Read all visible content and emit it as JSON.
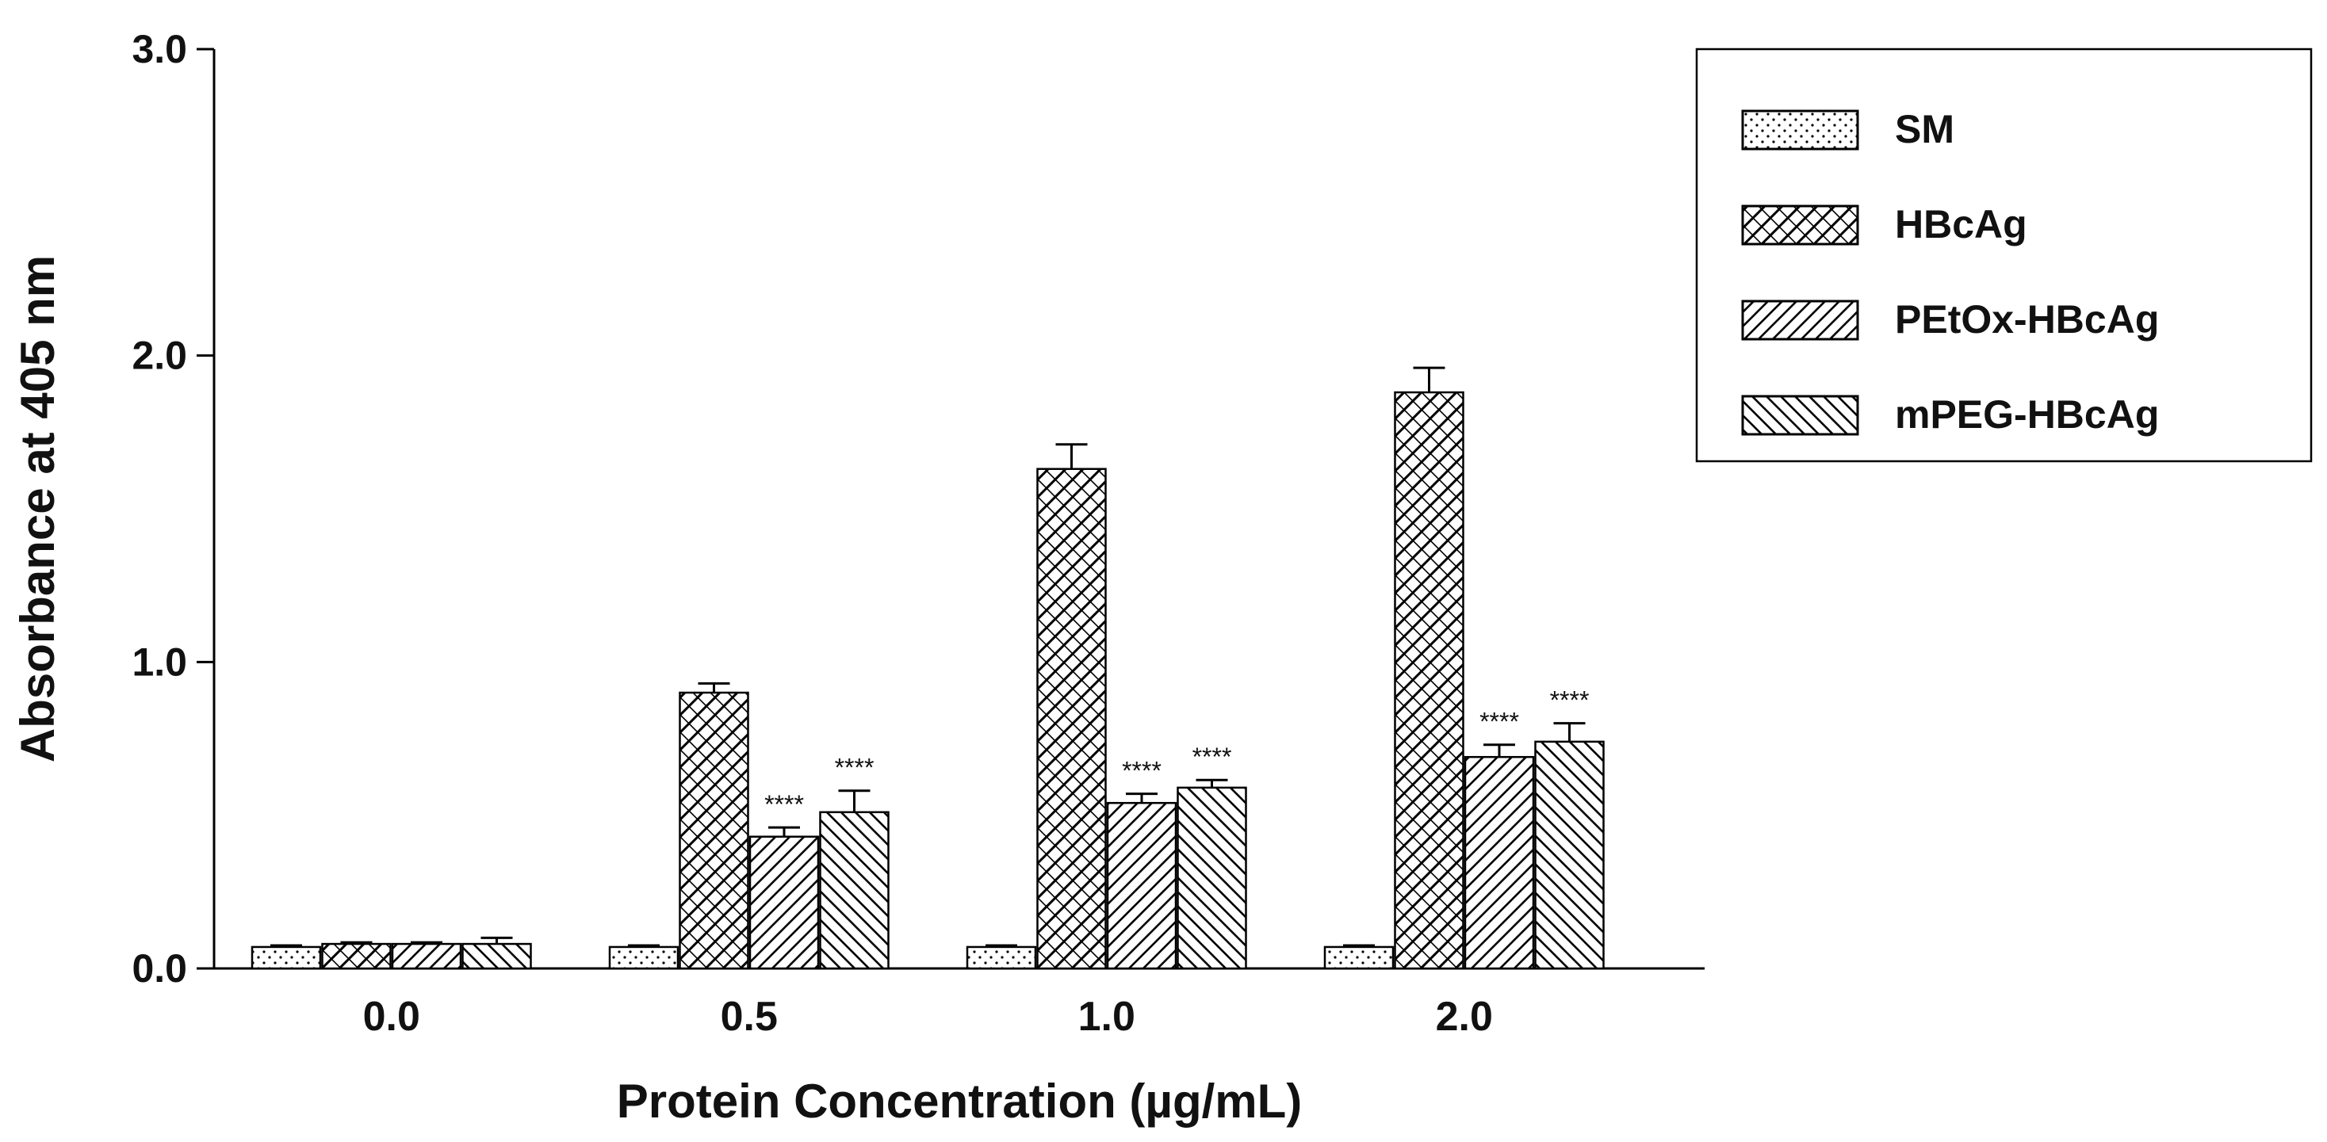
{
  "chart_data": {
    "type": "bar",
    "title": "",
    "xlabel": "Protein Concentration (µg/mL)",
    "ylabel": "Absorbance at 405 nm",
    "ylim": [
      0,
      3.0
    ],
    "yticks": [
      0.0,
      1.0,
      2.0,
      3.0
    ],
    "ytick_labels": [
      "0.0",
      "1.0",
      "2.0",
      "3.0"
    ],
    "categories": [
      "0.0",
      "0.5",
      "1.0",
      "2.0"
    ],
    "legend_position": "top-right",
    "series": [
      {
        "name": "SM",
        "pattern": "dots",
        "values": [
          0.07,
          0.07,
          0.07,
          0.07
        ],
        "errors": [
          0.005,
          0.005,
          0.005,
          0.005
        ],
        "annotations": [
          "",
          "",
          "",
          ""
        ]
      },
      {
        "name": "HBcAg",
        "pattern": "crosshatch",
        "values": [
          0.08,
          0.9,
          1.63,
          1.88
        ],
        "errors": [
          0.005,
          0.03,
          0.08,
          0.08
        ],
        "annotations": [
          "",
          "",
          "",
          ""
        ]
      },
      {
        "name": "PEtOx-HBcAg",
        "pattern": "diag-up",
        "values": [
          0.08,
          0.43,
          0.54,
          0.69
        ],
        "errors": [
          0.005,
          0.03,
          0.03,
          0.04
        ],
        "annotations": [
          "",
          "****",
          "****",
          "****"
        ]
      },
      {
        "name": "mPEG-HBcAg",
        "pattern": "diag-down",
        "values": [
          0.08,
          0.51,
          0.59,
          0.74
        ],
        "errors": [
          0.02,
          0.07,
          0.025,
          0.06
        ],
        "annotations": [
          "",
          "****",
          "****",
          "****"
        ]
      }
    ],
    "colors": {
      "bar_fill": "#ffffff",
      "stroke": "#000000",
      "text": "#111111"
    }
  }
}
